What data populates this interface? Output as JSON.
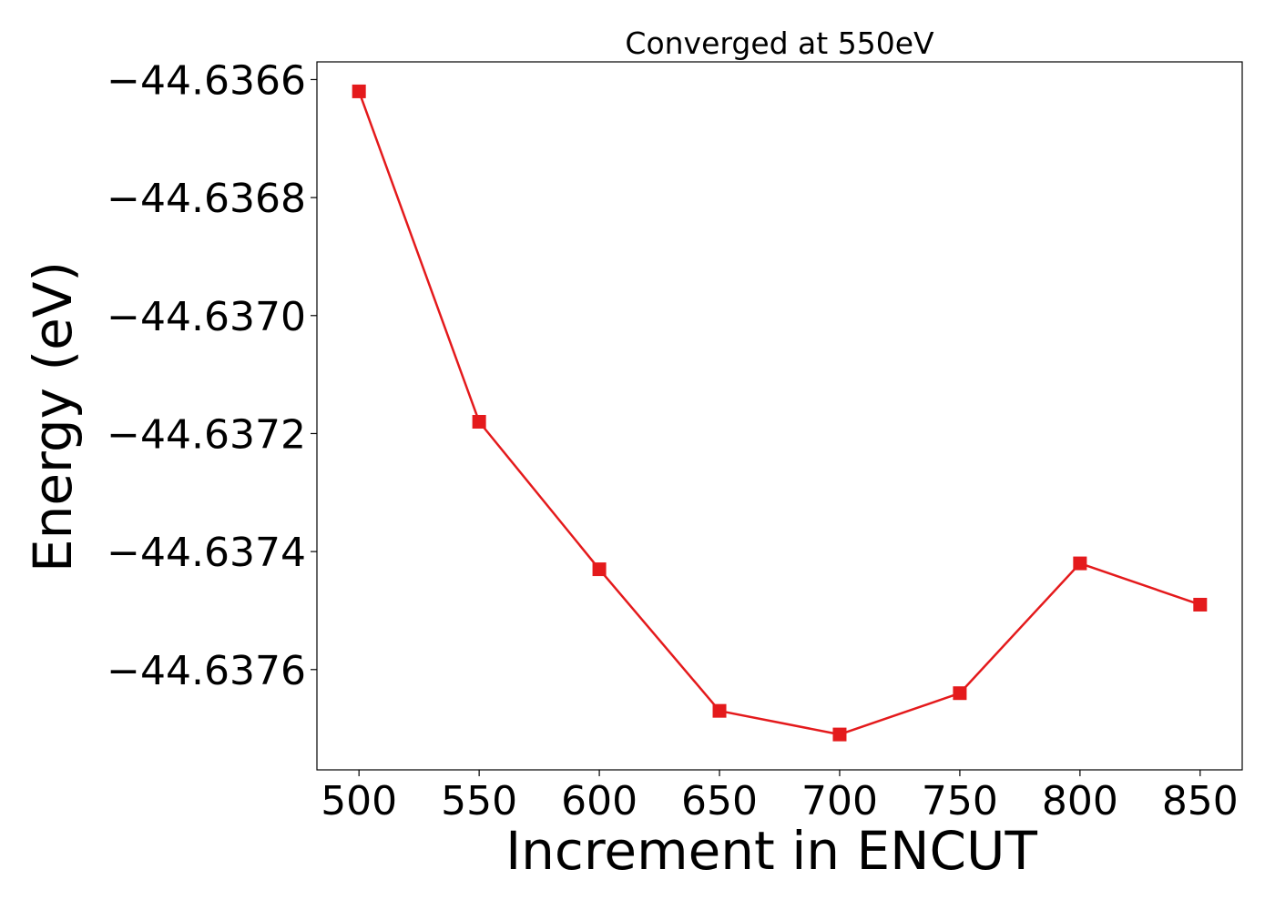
{
  "chart_data": {
    "type": "line",
    "title": "Converged at 550eV",
    "xlabel": "Increment in ENCUT",
    "ylabel": "Energy (eV)",
    "x": [
      500,
      550,
      600,
      650,
      700,
      750,
      800,
      850
    ],
    "series": [
      {
        "values": [
          -44.63662,
          -44.63718,
          -44.63743,
          -44.63767,
          -44.63771,
          -44.63764,
          -44.63742,
          -44.63749
        ],
        "color": "#e41a1c",
        "marker": "square"
      }
    ],
    "xticks": [
      500,
      550,
      600,
      650,
      700,
      750,
      800,
      850
    ],
    "xtick_labels": [
      "500",
      "550",
      "600",
      "650",
      "700",
      "750",
      "800",
      "850"
    ],
    "yticks": [
      -44.6366,
      -44.6368,
      -44.637,
      -44.6372,
      -44.6374,
      -44.6376
    ],
    "ytick_labels": [
      "−44.6366",
      "−44.6368",
      "−44.6370",
      "−44.6372",
      "−44.6374",
      "−44.6376"
    ],
    "xlim": [
      482.5,
      867.5
    ],
    "ylim": [
      -44.63777,
      -44.63657
    ],
    "grid": false,
    "legend": "none"
  }
}
